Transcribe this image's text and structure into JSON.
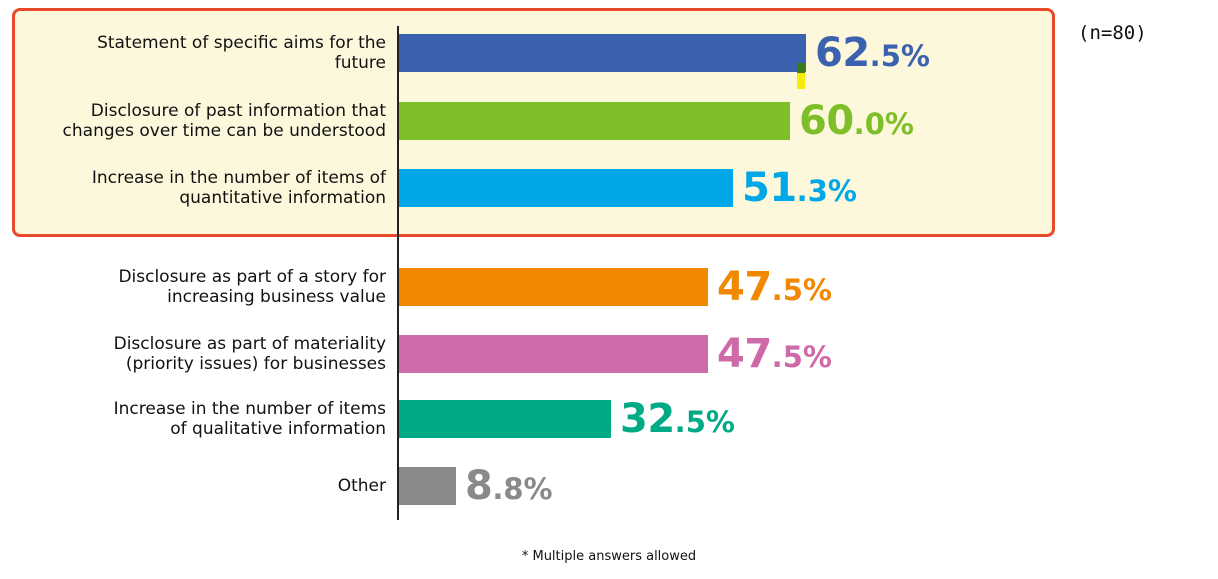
{
  "chart_data": {
    "type": "bar",
    "orientation": "horizontal",
    "categories": [
      "Statement of specific aims for the\nfuture",
      "Disclosure of past information that\nchanges over time can be understood",
      "Increase in the number of items of\nquantitative information",
      "Disclosure as part of a story for\nincreasing business value",
      "Disclosure as part of materiality\n(priority issues) for businesses",
      "Increase in the number of items\nof qualitative information",
      "Other"
    ],
    "values": [
      62.5,
      60.0,
      51.3,
      47.5,
      47.5,
      32.5,
      8.8
    ],
    "value_labels": [
      {
        "int": "62",
        "dec": ".5%"
      },
      {
        "int": "60",
        "dec": ".0%"
      },
      {
        "int": "51",
        "dec": ".3%"
      },
      {
        "int": "47",
        "dec": ".5%"
      },
      {
        "int": "47",
        "dec": ".5%"
      },
      {
        "int": "32",
        "dec": ".5%"
      },
      {
        "int": "8",
        "dec": ".8%"
      }
    ],
    "colors": [
      "#3b62ae",
      "#7ebf29",
      "#00a8e8",
      "#f08800",
      "#cf6aa8",
      "#00aa84",
      "#8a8a8a"
    ],
    "xlim": [
      0,
      100
    ],
    "highlighted_count": 3,
    "highlight_colors": {
      "fill": "#fdf8dc",
      "border": "#e8492a"
    },
    "title": "",
    "xlabel": "",
    "ylabel": ""
  },
  "sample_note": "(n=80)",
  "footnote": "* Multiple answers allowed"
}
